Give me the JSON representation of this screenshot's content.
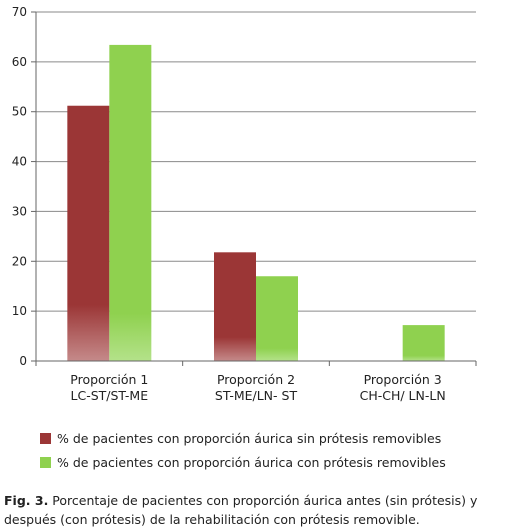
{
  "chart_data": {
    "type": "bar",
    "categories": [
      [
        "Proporción 1",
        "LC-ST/ST-ME"
      ],
      [
        "Proporción 2",
        "ST-ME/LN- ST"
      ],
      [
        "Proporción 3",
        "CH-CH/ LN-LN"
      ]
    ],
    "series": [
      {
        "name": "% de pacientes con proporción áurica sin prótesis removibles",
        "color": "#9b3636",
        "values": [
          51.2,
          21.8,
          0
        ]
      },
      {
        "name": "% de pacientes con proporción áurica con prótesis removibles",
        "color": "#8fd14f",
        "values": [
          63.4,
          17,
          7.2
        ]
      }
    ],
    "ylim": [
      0,
      70
    ],
    "yticks": [
      "0",
      "10",
      "20",
      "30",
      "40",
      "50",
      "60",
      "70"
    ],
    "grid": true,
    "legend": "bottom"
  },
  "caption": {
    "label": "Fig. 3.",
    "text": " Porcentaje de pacientes con proporción áurica antes (sin prótesis) y después (con prótesis) de la rehabilitación con prótesis removible."
  }
}
